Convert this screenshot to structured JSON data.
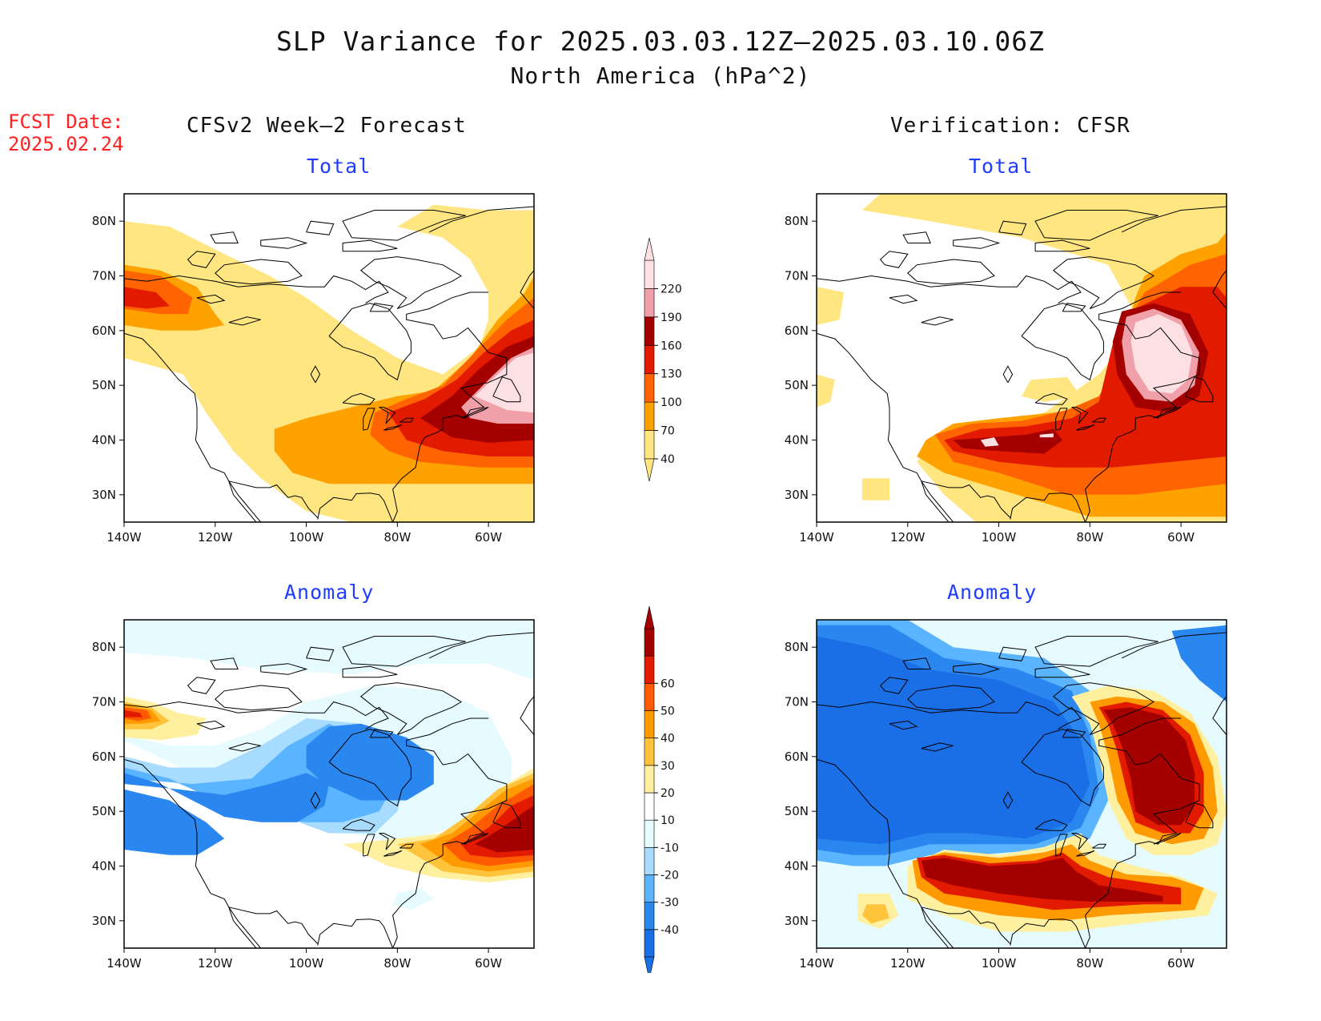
{
  "title": {
    "line1": "SLP Variance for 2025.03.03.12Z–2025.03.10.06Z",
    "line2": "North America (hPa^2)"
  },
  "fcst_date": {
    "label": "FCST Date:",
    "value": "2025.02.24"
  },
  "columns": {
    "left": "CFSv2 Week–2 Forecast",
    "right": "Verification: CFSR"
  },
  "panels": {
    "top_left": "Total",
    "top_right": "Total",
    "bottom_left": "Anomaly",
    "bottom_right": "Anomaly"
  },
  "axes": {
    "lat_labels": [
      "80N",
      "70N",
      "60N",
      "50N",
      "40N",
      "30N"
    ],
    "lon_labels": [
      "140W",
      "120W",
      "100W",
      "80W",
      "60W"
    ]
  },
  "colorbars": {
    "total": {
      "levels": [
        "40",
        "70",
        "100",
        "130",
        "160",
        "190",
        "220"
      ],
      "colors": [
        "#ffe680",
        "#ffa200",
        "#ff6400",
        "#e11a00",
        "#a50000",
        "#f0a0a8",
        "#fde0e4"
      ]
    },
    "anomaly": {
      "levels": [
        "-40",
        "-30",
        "-20",
        "-10",
        "10",
        "20",
        "30",
        "40",
        "50",
        "60"
      ],
      "colors": [
        "#1a6ee6",
        "#2a87f0",
        "#5ab4ff",
        "#a8dcff",
        "#e6fbff",
        "#ffffff",
        "#fff0a0",
        "#ffc33c",
        "#ff9a00",
        "#ff5a00",
        "#e11a00",
        "#a50000"
      ]
    }
  }
}
